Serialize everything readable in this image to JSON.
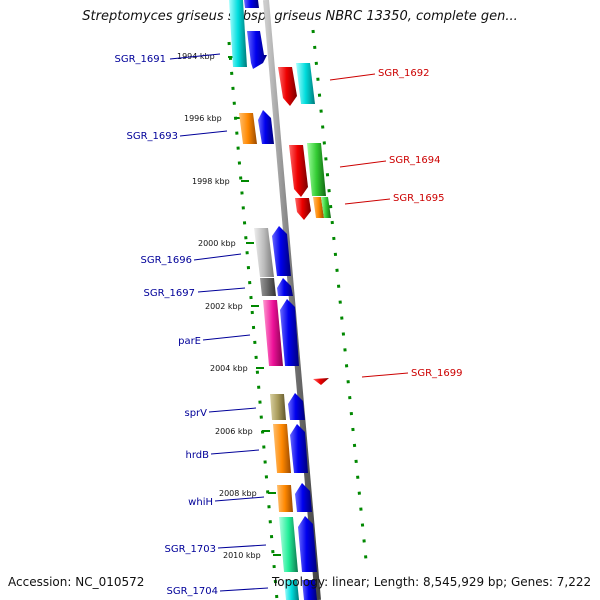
{
  "title": "Streptomyces griseus subsp. griseus NBRC 13350, complete gen...",
  "footer": {
    "accession": "Accession: NC_010572",
    "summary": "Topology: linear; Length: 8,545,929 bp; Genes: 7,222"
  },
  "scale_ticks": [
    "1994 kbp",
    "1996 kbp",
    "1998 kbp",
    "2000 kbp",
    "2002 kbp",
    "2004 kbp",
    "2006 kbp",
    "2008 kbp",
    "2010 kbp"
  ],
  "left_labels": [
    "SGR_1691",
    "SGR_1693",
    "SGR_1696",
    "SGR_1697",
    "parE",
    "sprV",
    "hrdB",
    "whiH",
    "SGR_1703",
    "SGR_1704"
  ],
  "right_labels": [
    "SGR_1692",
    "SGR_1694",
    "SGR_1695",
    "SGR_1699"
  ],
  "colors": {
    "left_label": "#000099",
    "right_label": "#cc0000",
    "dotted_track": "#008800",
    "backbone": "#8a8a8a",
    "forward_strand": "#0000ee",
    "reverse_strand": "#ee0000"
  }
}
